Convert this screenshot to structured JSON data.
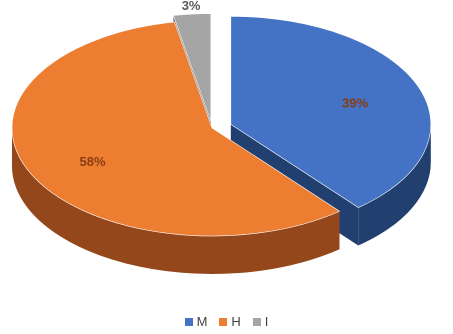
{
  "chart_data": {
    "type": "pie",
    "style": "3d-exploded",
    "categories": [
      "M",
      "H",
      "I"
    ],
    "values": [
      39,
      58,
      3
    ],
    "data_labels": [
      "39%",
      "58%",
      "3%"
    ],
    "colors": [
      "#4472c4",
      "#ed7d31",
      "#a5a5a5"
    ],
    "side_colors": [
      "#22406f",
      "#94471a",
      "#5d5d5d"
    ],
    "label_color": "#8a3b12",
    "legend_position": "bottom",
    "title": ""
  }
}
